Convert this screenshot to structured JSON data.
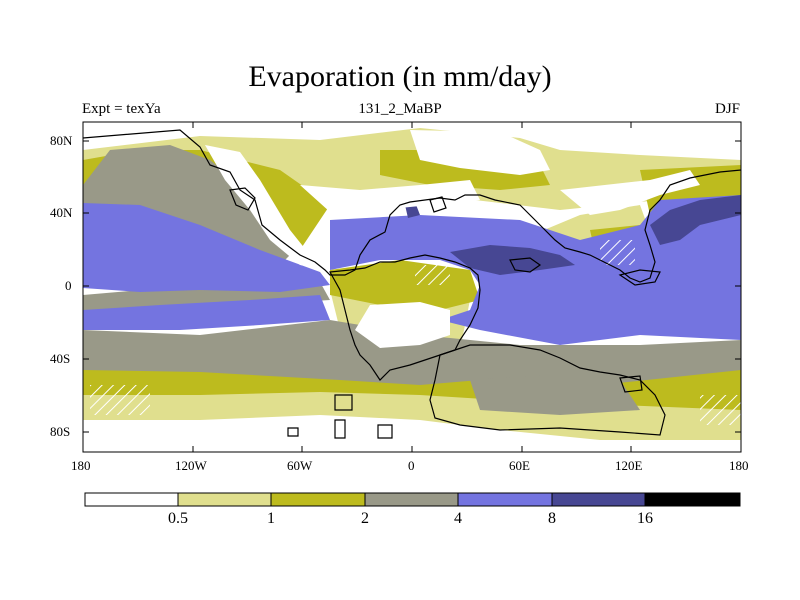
{
  "title": "Evaporation (in mm/day)",
  "subtitle_left": "Expt = texYa",
  "subtitle_center": "131_2_MaBP",
  "subtitle_right": "DJF",
  "lat_labels": [
    "80N",
    "40N",
    "0",
    "40S",
    "80S"
  ],
  "lon_labels": [
    "180",
    "120W",
    "60W",
    "0",
    "60E",
    "120E",
    "180"
  ],
  "colorbar": {
    "labels": [
      "0.5",
      "1",
      "2",
      "4",
      "8",
      "16"
    ],
    "colors": [
      "#ffffff",
      "#e0df8e",
      "#bdbb1e",
      "#999988",
      "#7474e0",
      "#474793",
      "#000000"
    ]
  },
  "map_colors": {
    "land_outline": "#000000",
    "hatch": "#ffffff"
  }
}
